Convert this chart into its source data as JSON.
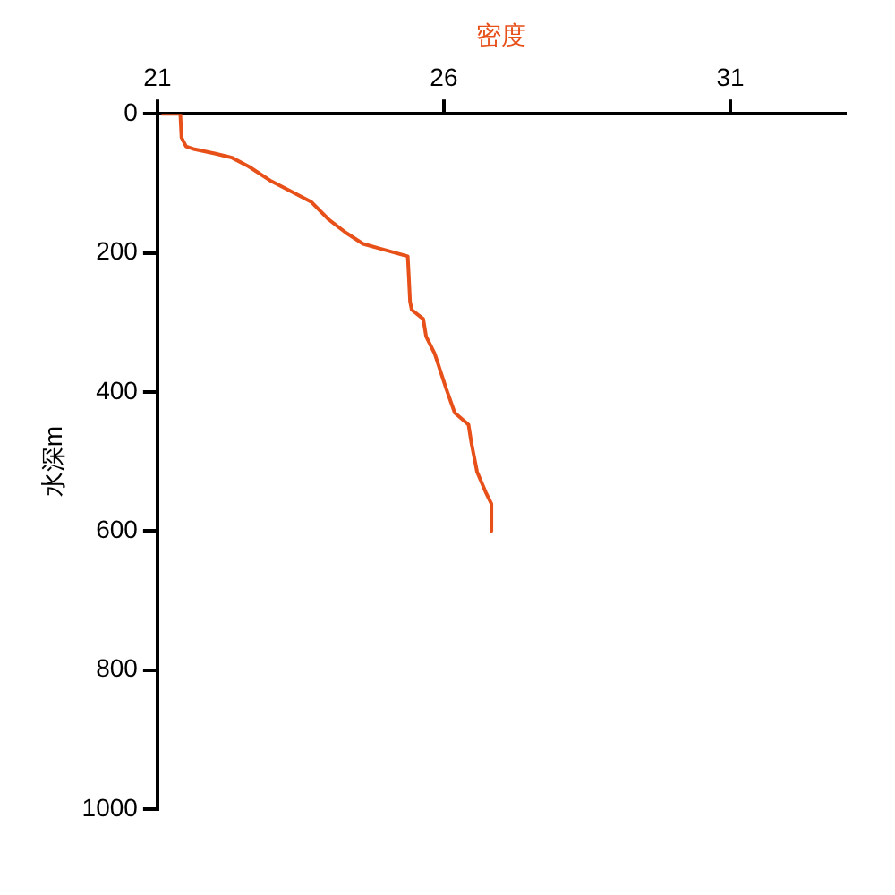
{
  "chart_data": {
    "type": "line",
    "xlabel": "密度",
    "ylabel": "水深m",
    "xlim": [
      21,
      33
    ],
    "xticks": [
      21,
      26,
      31
    ],
    "ylim": [
      1000,
      0
    ],
    "yticks": [
      0,
      200,
      400,
      600,
      800,
      1000
    ],
    "grid": false,
    "legend": false,
    "marker": "none",
    "line_style": "solid",
    "series": [
      {
        "color": "#e8501a",
        "x": [
          21.07,
          21.4,
          21.42,
          21.5,
          21.65,
          22.0,
          22.3,
          22.6,
          22.99,
          23.39,
          23.69,
          23.99,
          24.29,
          24.59,
          24.89,
          25.37,
          25.39,
          25.41,
          25.44,
          25.64,
          25.69,
          25.84,
          25.94,
          26.04,
          26.19,
          26.43,
          26.48,
          26.58,
          26.73,
          26.83,
          26.83
        ],
        "values": [
          0,
          0,
          34,
          47,
          51,
          57,
          63,
          76,
          97,
          114,
          127,
          152,
          171,
          187,
          194,
          205,
          236,
          270,
          282,
          295,
          320,
          345,
          370,
          395,
          430,
          447,
          473,
          515,
          544,
          561,
          600
        ]
      }
    ]
  }
}
